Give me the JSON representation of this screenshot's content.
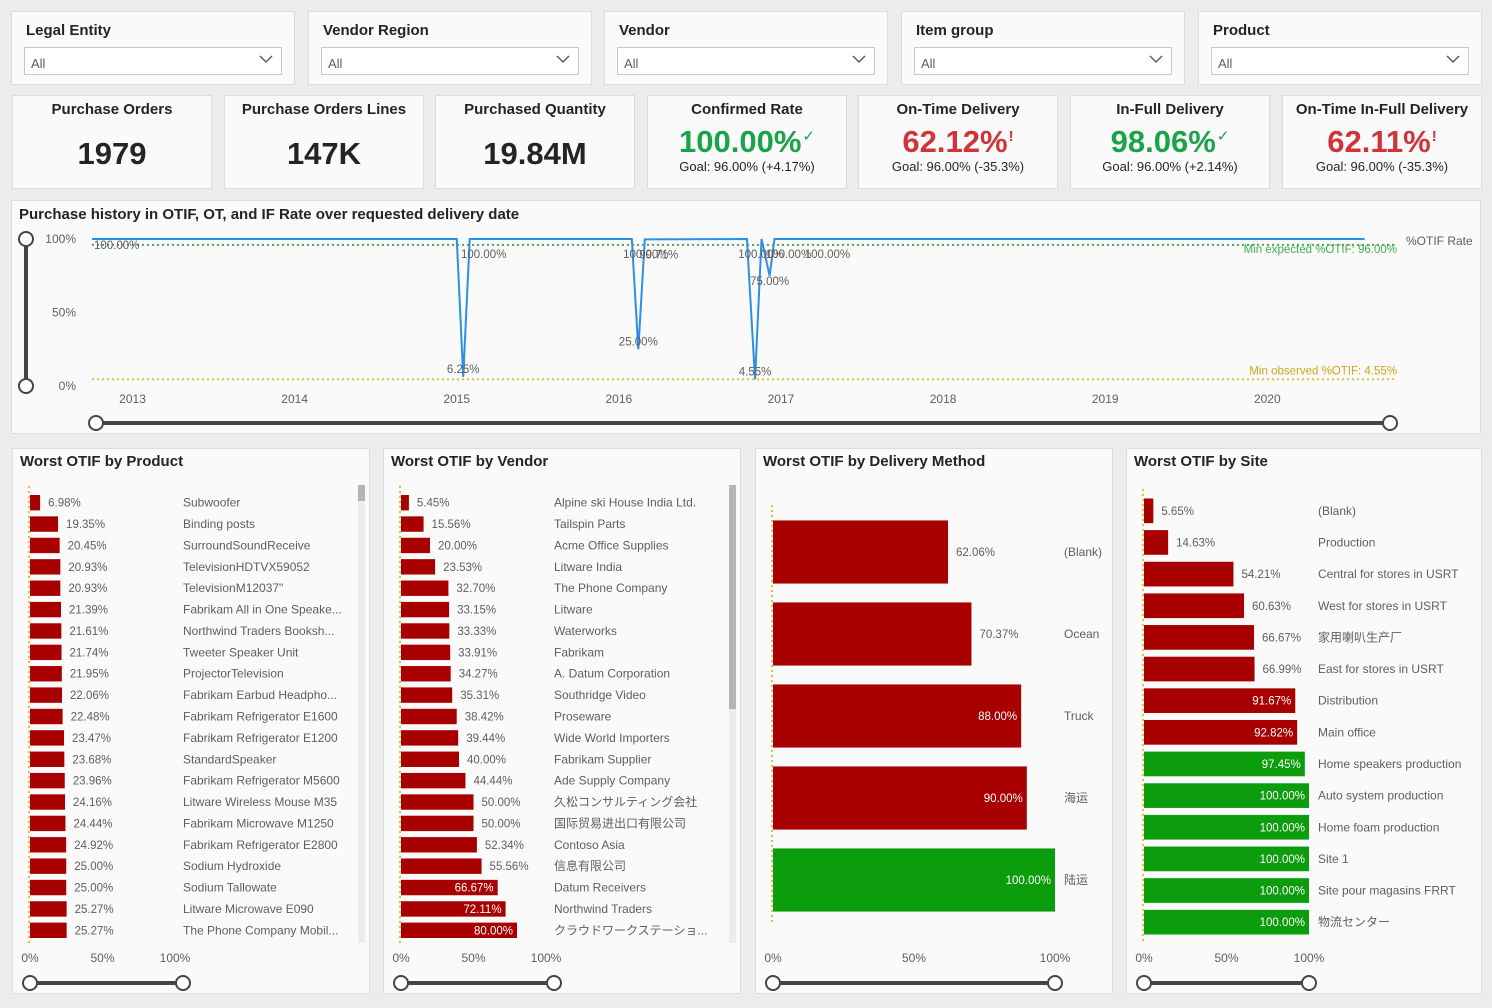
{
  "slicers": [
    {
      "title": "Legal Entity",
      "value": "All"
    },
    {
      "title": "Vendor Region",
      "value": "All"
    },
    {
      "title": "Vendor",
      "value": "All"
    },
    {
      "title": "Item group",
      "value": "All"
    },
    {
      "title": "Product",
      "value": "All"
    }
  ],
  "kpis": {
    "purchase_orders": {
      "title": "Purchase Orders",
      "value": "1979"
    },
    "purchase_order_lines": {
      "title": "Purchase Orders Lines",
      "value": "147K"
    },
    "purchased_quantity": {
      "title": "Purchased Quantity",
      "value": "19.84M"
    },
    "confirmed_rate": {
      "title": "Confirmed Rate",
      "value": "100.00%",
      "mark": "✓",
      "goal": "Goal: 96.00% (+4.17%)",
      "status": "good"
    },
    "on_time_delivery": {
      "title": "On-Time Delivery",
      "value": "62.12%",
      "mark": "!",
      "goal": "Goal: 96.00% (-35.3%)",
      "status": "bad"
    },
    "in_full_delivery": {
      "title": "In-Full Delivery",
      "value": "98.06%",
      "mark": "✓",
      "goal": "Goal: 96.00% (+2.14%)",
      "status": "good"
    },
    "otif_delivery": {
      "title": "On-Time In-Full Delivery",
      "value": "62.11%",
      "mark": "!",
      "goal": "Goal: 96.00% (-35.3%)",
      "status": "bad"
    }
  },
  "colors": {
    "good": "#1aa34a",
    "bad": "#d13438",
    "bar_bad": "#a80000",
    "bar_good": "#0b9d0b",
    "line": "#2b8fe8",
    "ref_expected": "#43b04a",
    "ref_observed": "#e6c03c"
  },
  "chart_data": [
    {
      "type": "line",
      "title": "Purchase history in OTIF, OT, and IF Rate over requested delivery date",
      "x_ticks": [
        "2013",
        "2014",
        "2015",
        "2016",
        "2017",
        "2018",
        "2019",
        "2020"
      ],
      "y_ticks": [
        "100%",
        "50%",
        "0%"
      ],
      "ylim": [
        0,
        100
      ],
      "series": [
        {
          "name": "%OTIF Rate",
          "points": [
            {
              "x": 2012.75,
              "y": 100
            },
            {
              "x": 2015.0,
              "y": 100
            },
            {
              "x": 2015.04,
              "y": 6.25,
              "label": "6.25%"
            },
            {
              "x": 2015.08,
              "y": 100,
              "label": "100.00%"
            },
            {
              "x": 2016.08,
              "y": 100,
              "label": "100.00%"
            },
            {
              "x": 2016.12,
              "y": 25,
              "label": "25.00%"
            },
            {
              "x": 2016.16,
              "y": 99.71,
              "label": "99.71%"
            },
            {
              "x": 2016.79,
              "y": 100,
              "label": "100.00%"
            },
            {
              "x": 2016.84,
              "y": 4.55,
              "label": "4.55%"
            },
            {
              "x": 2016.88,
              "y": 100
            },
            {
              "x": 2016.93,
              "y": 75,
              "label": "75.00%"
            },
            {
              "x": 2016.96,
              "y": 100,
              "label": "100.00%"
            },
            {
              "x": 2017.2,
              "y": 100,
              "label": "100.00%"
            },
            {
              "x": 2020.6,
              "y": 100
            }
          ]
        }
      ],
      "start_label": "100.00%",
      "reference_lines": [
        {
          "label": "Min expected %OTIF: 96.00%",
          "value": 96
        },
        {
          "label": "Min observed %OTIF: 4.55%",
          "value": 4.55
        }
      ]
    },
    {
      "type": "bar",
      "title": "Worst OTIF by Product",
      "x_ticks": [
        "0%",
        "50%",
        "100%"
      ],
      "categories": [
        "Subwoofer",
        "Binding posts",
        "SurroundSoundReceive",
        "TelevisionHDTVX59052",
        "TelevisionM12037\"",
        "Fabrikam All in One Speake...",
        "Northwind Traders Booksh...",
        "Tweeter Speaker Unit",
        "ProjectorTelevision",
        "Fabrikam Earbud Headpho...",
        "Fabrikam Refrigerator E1600",
        "Fabrikam Refrigerator E1200",
        "StandardSpeaker",
        "Fabrikam Refrigerator M5600",
        "Litware Wireless Mouse M35",
        "Fabrikam Microwave M1250",
        "Fabrikam Refrigerator E2800",
        "Sodium Hydroxide",
        "Sodium Tallowate",
        "Litware Microwave E090",
        "The Phone Company Mobil..."
      ],
      "values": [
        6.98,
        19.35,
        20.45,
        20.93,
        20.93,
        21.39,
        21.61,
        21.74,
        21.95,
        22.06,
        22.48,
        23.47,
        23.68,
        23.96,
        24.16,
        24.44,
        24.92,
        25.0,
        25.0,
        25.27,
        25.27
      ],
      "labels": [
        "6.98%",
        "19.35%",
        "20.45%",
        "20.93%",
        "20.93%",
        "21.39%",
        "21.61%",
        "21.74%",
        "21.95%",
        "22.06%",
        "22.48%",
        "23.47%",
        "23.68%",
        "23.96%",
        "24.16%",
        "24.44%",
        "24.92%",
        "25.00%",
        "25.00%",
        "25.27%",
        "25.27%"
      ]
    },
    {
      "type": "bar",
      "title": "Worst OTIF by Vendor",
      "x_ticks": [
        "0%",
        "50%",
        "100%"
      ],
      "categories": [
        "Alpine ski House India Ltd.",
        "Tailspin Parts",
        "Acme Office Supplies",
        "Litware India",
        "The Phone Company",
        "Litware",
        "Waterworks",
        "Fabrikam",
        "A. Datum Corporation",
        "Southridge Video",
        "Proseware",
        "Wide World Importers",
        "Fabrikam Supplier",
        "Ade Supply Company",
        "久松コンサルティング会社",
        "国际贸易进出口有限公司",
        "Contoso Asia",
        "信息有限公司",
        "Datum Receivers",
        "Northwind Traders",
        "クラウドワークステーショ..."
      ],
      "values": [
        5.45,
        15.56,
        20.0,
        23.53,
        32.7,
        33.15,
        33.33,
        33.91,
        34.27,
        35.31,
        38.42,
        39.44,
        40.0,
        44.44,
        50.0,
        50.0,
        52.34,
        55.56,
        66.67,
        72.11,
        80.0
      ],
      "labels": [
        "5.45%",
        "15.56%",
        "20.00%",
        "23.53%",
        "32.70%",
        "33.15%",
        "33.33%",
        "33.91%",
        "34.27%",
        "35.31%",
        "38.42%",
        "39.44%",
        "40.00%",
        "44.44%",
        "50.00%",
        "50.00%",
        "52.34%",
        "55.56%",
        "66.67%",
        "72.11%",
        "80.00%"
      ]
    },
    {
      "type": "bar",
      "title": "Worst OTIF by Delivery Method",
      "x_ticks": [
        "0%",
        "50%",
        "100%"
      ],
      "categories": [
        "(Blank)",
        "Ocean",
        "Truck",
        "海运",
        "陆运"
      ],
      "values": [
        62.06,
        70.37,
        88.0,
        90.0,
        100.0
      ],
      "labels": [
        "62.06%",
        "70.37%",
        "88.00%",
        "90.00%",
        "100.00%"
      ]
    },
    {
      "type": "bar",
      "title": "Worst OTIF by Site",
      "x_ticks": [
        "0%",
        "50%",
        "100%"
      ],
      "categories": [
        "(Blank)",
        "Production",
        "Central for stores in USRT",
        "West for stores in USRT",
        "家用喇叭生产厂",
        "East for stores in USRT",
        "Distribution",
        "Main office",
        "Home speakers production",
        "Auto system production",
        "Home foam production",
        "Site 1",
        "Site pour magasins FRRT",
        "物流センター"
      ],
      "values": [
        5.65,
        14.63,
        54.21,
        60.63,
        66.67,
        66.99,
        91.67,
        92.82,
        97.45,
        100.0,
        100.0,
        100.0,
        100.0,
        100.0
      ],
      "labels": [
        "5.65%",
        "14.63%",
        "54.21%",
        "60.63%",
        "66.67%",
        "66.99%",
        "91.67%",
        "92.82%",
        "97.45%",
        "100.00%",
        "100.00%",
        "100.00%",
        "100.00%",
        "100.00%"
      ]
    }
  ]
}
